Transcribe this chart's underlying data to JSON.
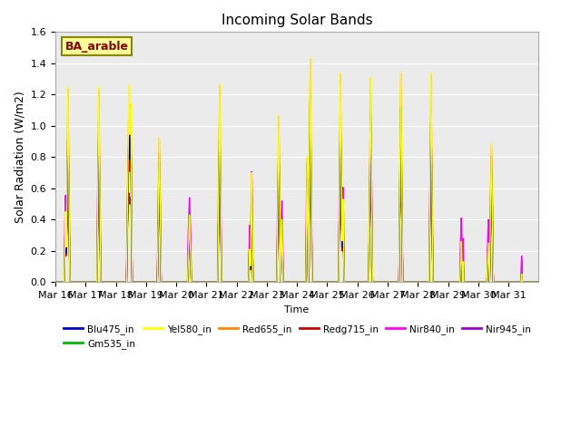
{
  "title": "Incoming Solar Bands",
  "xlabel": "Time",
  "ylabel": "Solar Radiation (W/m2)",
  "ylim": [
    0,
    1.6
  ],
  "annotation_text": "BA_arable",
  "annotation_color": "#8B0000",
  "annotation_bg": "#FFFF99",
  "background_color": "#EBEBEB",
  "legend_entries": [
    "Blu475_in",
    "Gm535_in",
    "Yel580_in",
    "Red655_in",
    "Redg715_in",
    "Nir840_in",
    "Nir945_in"
  ],
  "line_colors": {
    "Blu475_in": "#0000CC",
    "Gm535_in": "#00BB00",
    "Yel580_in": "#FFFF00",
    "Red655_in": "#FF8800",
    "Redg715_in": "#CC0000",
    "Nir840_in": "#FF00FF",
    "Nir945_in": "#9900CC"
  },
  "x_tick_labels": [
    "Mar 16",
    "Mar 17",
    "Mar 18",
    "Mar 19",
    "Mar 20",
    "Mar 21",
    "Mar 22",
    "Mar 23",
    "Mar 24",
    "Mar 25",
    "Mar 26",
    "Mar 27",
    "Mar 28",
    "Mar 29",
    "Mar 30",
    "Mar 31"
  ],
  "x_tick_positions": [
    0,
    48,
    96,
    144,
    192,
    240,
    288,
    336,
    384,
    432,
    480,
    528,
    576,
    624,
    672,
    720
  ]
}
